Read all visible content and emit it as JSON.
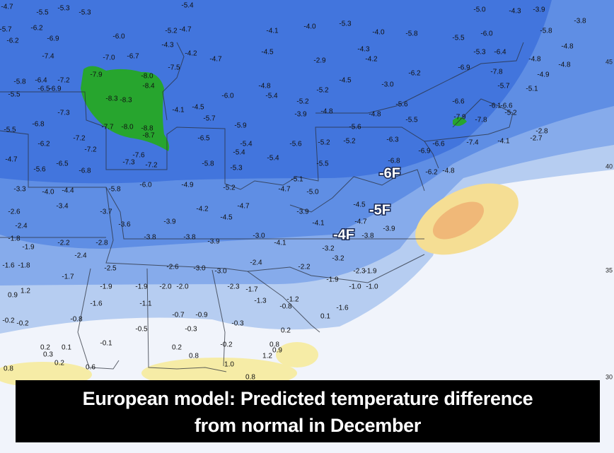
{
  "map": {
    "values": [
      "-4.7",
      "-5.5",
      "-5.3",
      "-5.3",
      "-5.4",
      "-5.7",
      "-6.2",
      "-6.2",
      "-6.9",
      "-6.0",
      "-5.2",
      "-4.7",
      "-4.3",
      "-4.2",
      "-4.1",
      "-4.0",
      "-5.3",
      "-4.0",
      "-5.8",
      "-5.5",
      "-6.0",
      "-5.0",
      "-4.3",
      "-3.9",
      "-3.8",
      "-5.8",
      "-4.8",
      "-7.4",
      "-7.0",
      "-6.7",
      "-7.5",
      "-4.7",
      "-4.5",
      "-2.9",
      "-4.3",
      "-4.2",
      "-5.3",
      "-6.4",
      "-4.8",
      "-4.8",
      "-5.8",
      "-6.4",
      "-7.2",
      "-6.5",
      "-6.9",
      "-7.9",
      "-8.0",
      "-8.4",
      "-8.3",
      "-8.3",
      "-5.5",
      "-7.3",
      "-4.1",
      "-4.5",
      "-6.0",
      "-4.8",
      "-5.4",
      "-4.5",
      "-5.2",
      "-3.0",
      "-6.2",
      "-6.9",
      "-7.8",
      "-5.7",
      "-4.9",
      "-5.1",
      "-6.6",
      "-6.1",
      "-6.6",
      "-5.2",
      "-7.9",
      "-7.8",
      "-5.6",
      "-4.8",
      "-5.5",
      "-5.2",
      "-3.9",
      "-4.8",
      "-5.7",
      "-5.9",
      "-6.8",
      "-5.5",
      "-7.7",
      "-8.0",
      "-8.8",
      "-8.7",
      "-7.2",
      "-6.2",
      "-7.2",
      "-7.6",
      "-7.3",
      "-7.2",
      "-6.5",
      "-5.4",
      "-5.4",
      "-5.6",
      "-5.2",
      "-5.2",
      "-5.6",
      "-6.3",
      "-6.9",
      "-6.6",
      "-7.4",
      "-4.1",
      "-2.8",
      "-2.7",
      "-4.7",
      "-5.6",
      "-6.5",
      "-6.8",
      "-5.8",
      "-5.3",
      "-5.4",
      "-5.5",
      "-6.8",
      "-6.2",
      "-4.8",
      "-6.0",
      "-4.9",
      "-5.8",
      "-3.3",
      "-4.0",
      "-4.4",
      "-5.2",
      "-4.7",
      "-5.1",
      "-5.0",
      "-3.4",
      "-2.6",
      "-3.7",
      "-4.2",
      "-4.7",
      "-4.5",
      "-3.9",
      "-4.5",
      "-4.7",
      "-4.1",
      "-3.9",
      "-3.9",
      "-3.6",
      "-2.4",
      "-3.8",
      "-3.8",
      "-3.9",
      "-3.0",
      "-4.1",
      "-3.8",
      "-1.8",
      "-1.9",
      "-2.2",
      "-2.8",
      "-3.2",
      "-3.2",
      "-2.4",
      "-1.6",
      "-1.8",
      "-2.5",
      "-2.6",
      "-3.0",
      "-3.0",
      "-2.4",
      "-2.2",
      "-2.3",
      "-1.9",
      "-1.7",
      "-1.9",
      "-1.9",
      "-2.0",
      "-2.0",
      "-2.3",
      "-1.7",
      "-1.9",
      "-1.0",
      "-1.0",
      "0.9",
      "1.2",
      "-1.6",
      "-1.1",
      "-1.3",
      "-0.8",
      "-1.2",
      "-1.6",
      "-0.7",
      "-0.9",
      "-0.3",
      "0.1",
      "-0.2",
      "-0.2",
      "-0.8",
      "-0.5",
      "-0.3",
      "0.2",
      "-0.1",
      "-0.2",
      "0.8",
      "0.2",
      "0.3",
      "0.1",
      "0.2",
      "0.9",
      "1.2",
      "0.8",
      "0.2",
      "0.6",
      "1.0",
      "0.8",
      "0.8"
    ],
    "annotations": [
      "-6F",
      "-5F",
      "-4F"
    ],
    "latitude_labels": [
      "45",
      "40",
      "35",
      "30"
    ]
  },
  "caption": [
    "European model: Predicted temperature difference",
    "from normal in December"
  ]
}
